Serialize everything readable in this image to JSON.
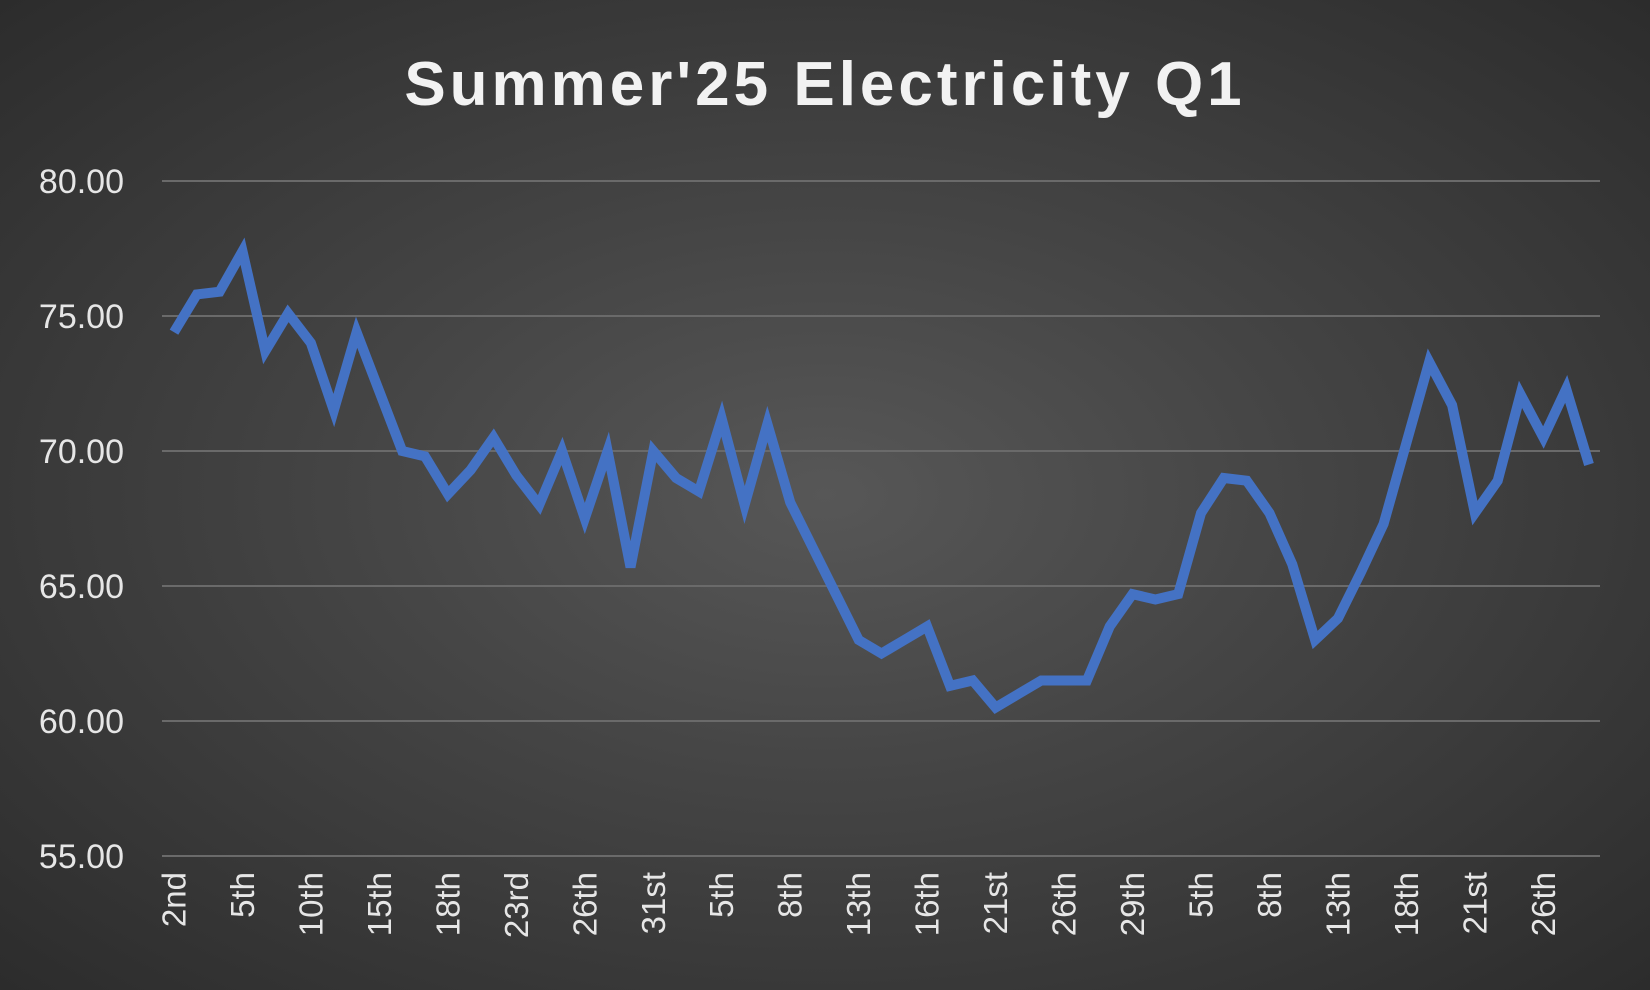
{
  "chart_data": {
    "type": "line",
    "title": "Summer'25 Electricity Q1",
    "xlabel": "",
    "ylabel": "",
    "ylim": [
      55,
      80
    ],
    "y_ticks": [
      "80.00",
      "75.00",
      "70.00",
      "65.00",
      "60.00",
      "55.00"
    ],
    "y_tick_values": [
      80,
      75,
      70,
      65,
      60,
      55
    ],
    "grid": true,
    "legend": "none",
    "line_color": "#4472c4",
    "x_tick_labels": [
      {
        "index": 0,
        "label": "2nd"
      },
      {
        "index": 3,
        "label": "5th"
      },
      {
        "index": 6,
        "label": "10th"
      },
      {
        "index": 9,
        "label": "15th"
      },
      {
        "index": 12,
        "label": "18th"
      },
      {
        "index": 15,
        "label": "23rd"
      },
      {
        "index": 18,
        "label": "26th"
      },
      {
        "index": 21,
        "label": "31st"
      },
      {
        "index": 24,
        "label": "5th"
      },
      {
        "index": 27,
        "label": "8th"
      },
      {
        "index": 30,
        "label": "13th"
      },
      {
        "index": 33,
        "label": "16th"
      },
      {
        "index": 36,
        "label": "21st"
      },
      {
        "index": 39,
        "label": "26th"
      },
      {
        "index": 42,
        "label": "29th"
      },
      {
        "index": 45,
        "label": "5th"
      },
      {
        "index": 48,
        "label": "8th"
      },
      {
        "index": 51,
        "label": "13th"
      },
      {
        "index": 54,
        "label": "18th"
      },
      {
        "index": 57,
        "label": "21st"
      },
      {
        "index": 60,
        "label": "26th"
      }
    ],
    "series": [
      {
        "values": [
          74.4,
          75.8,
          75.9,
          77.4,
          73.7,
          75.1,
          74.0,
          71.5,
          74.4,
          72.2,
          70.0,
          69.8,
          68.4,
          69.3,
          70.5,
          69.1,
          68.0,
          70.0,
          67.5,
          70.0,
          65.7,
          70.0,
          69.0,
          68.5,
          71.2,
          68.0,
          71.0,
          68.1,
          66.4,
          64.7,
          63.0,
          62.5,
          63.0,
          63.5,
          61.3,
          61.5,
          60.5,
          61.0,
          61.5,
          61.5,
          61.5,
          63.5,
          64.7,
          64.5,
          64.7,
          67.7,
          69.0,
          68.9,
          67.7,
          65.8,
          63.0,
          63.8,
          65.5,
          67.3,
          70.3,
          73.3,
          71.7,
          67.7,
          68.9,
          72.1,
          70.5,
          72.3,
          69.5
        ]
      }
    ]
  }
}
